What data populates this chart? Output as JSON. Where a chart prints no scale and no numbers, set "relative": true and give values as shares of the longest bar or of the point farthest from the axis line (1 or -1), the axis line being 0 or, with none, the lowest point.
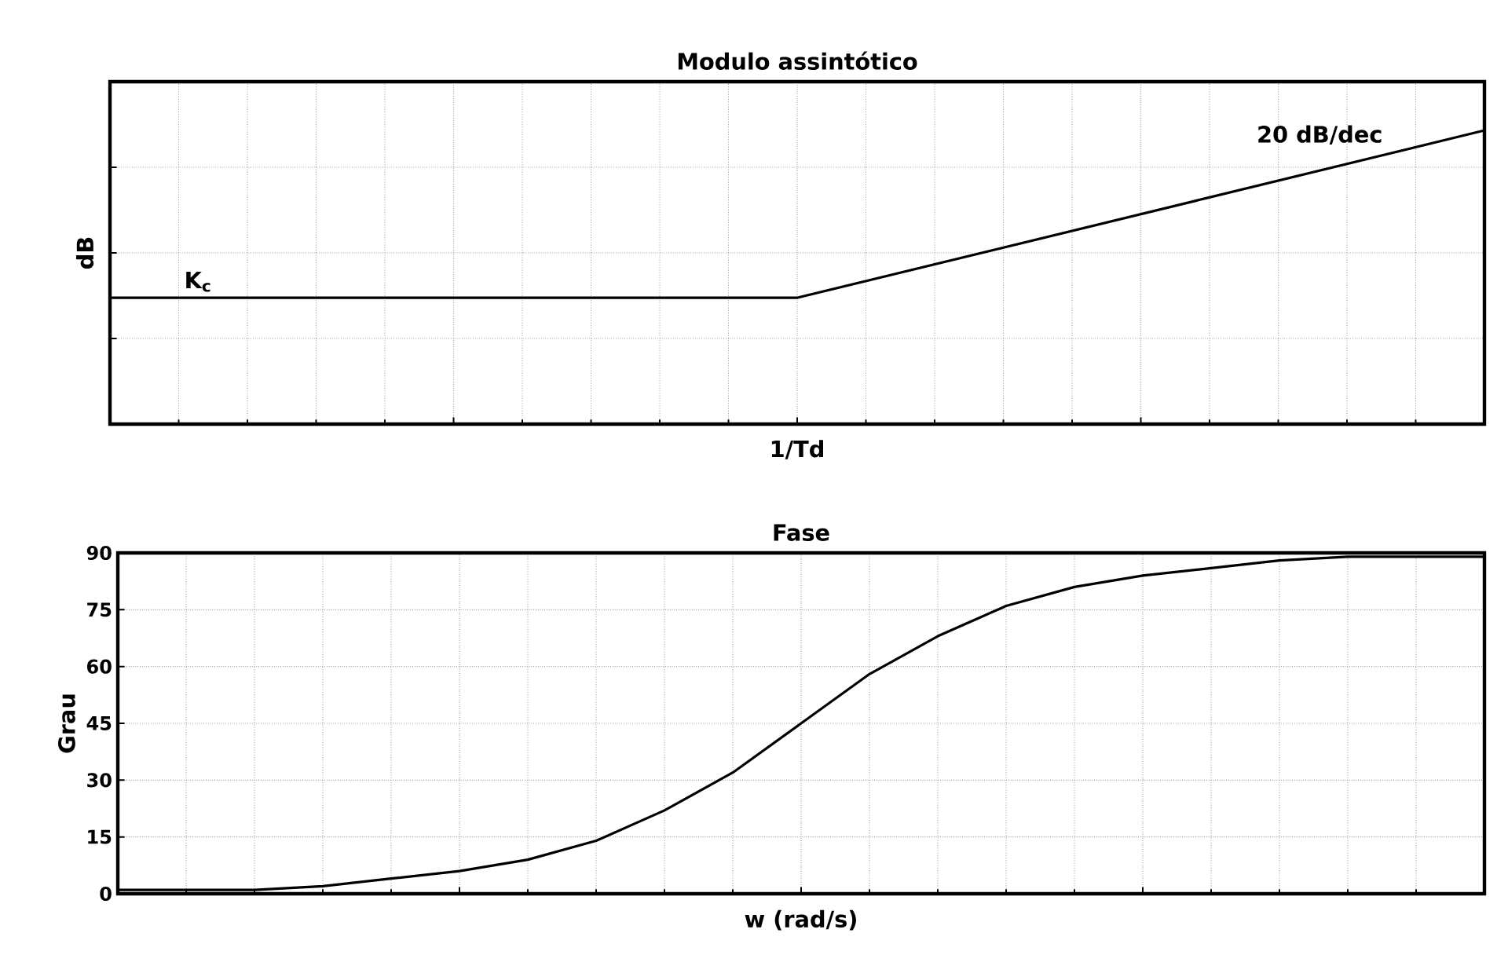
{
  "chart_data": [
    {
      "type": "line",
      "title": "Modulo assintótico",
      "ylabel": "dB",
      "relative": true,
      "grid": true,
      "tick_labels": false,
      "marker": "none",
      "categories": [
        null,
        null,
        null
      ],
      "series": [
        {
          "color": "#000000",
          "values": [
            0.43,
            0.43,
            1
          ]
        }
      ],
      "annotations": [
        "K$_{c}$",
        "20 dB/dec",
        "1/Td"
      ]
    },
    {
      "type": "line",
      "title": "Fase",
      "xlabel": "w (rad/s)",
      "ylabel": "Grau",
      "grid": true,
      "tick_labels": "y",
      "marker": "none",
      "categories": [
        null,
        null,
        null,
        null,
        null,
        null,
        null,
        null,
        null,
        null,
        null,
        null,
        null,
        null,
        null,
        null,
        null,
        null,
        null,
        null,
        null
      ],
      "ylim": [
        0,
        90
      ],
      "yticks": [
        0,
        15,
        30,
        45,
        60,
        75,
        90
      ],
      "series": [
        {
          "color": "#000000",
          "values": [
            1,
            1,
            1,
            2,
            4,
            6,
            9,
            14,
            22,
            32,
            45,
            58,
            68,
            76,
            81,
            84,
            86,
            88,
            89,
            89,
            89
          ]
        }
      ]
    }
  ]
}
